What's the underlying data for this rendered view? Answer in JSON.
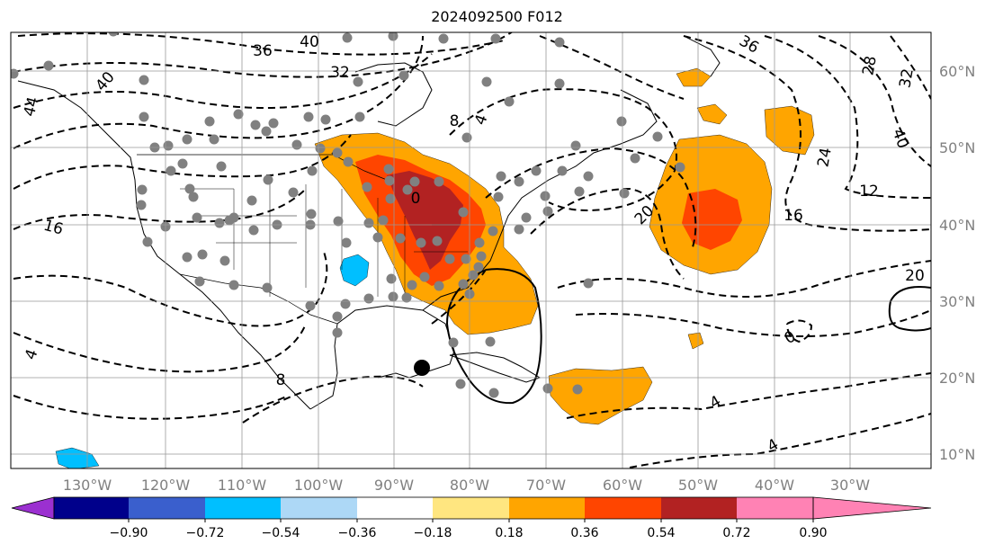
{
  "title": "2024092500 F012",
  "map": {
    "lon_range": [
      -138,
      -17
    ],
    "lat_range": [
      8,
      65
    ],
    "lon_ticks": [
      "130°W",
      "120°W",
      "110°W",
      "100°W",
      "90°W",
      "80°W",
      "70°W",
      "60°W",
      "50°W",
      "40°W",
      "30°W"
    ],
    "lat_ticks": [
      "10°N",
      "20°N",
      "30°N",
      "40°N",
      "50°N",
      "60°N"
    ],
    "contour_labels": [
      "36",
      "40",
      "32",
      "40",
      "44",
      "16",
      "20",
      "16",
      "12",
      "24",
      "28",
      "32",
      "40",
      "36",
      "20",
      "0",
      "4",
      "4",
      "8",
      "4",
      "8",
      "4",
      "0"
    ],
    "storm_marker": {
      "lon": -86.5,
      "lat": 21.3
    }
  },
  "colorbar": {
    "ticks": [
      "−0.90",
      "−0.72",
      "−0.54",
      "−0.36",
      "−0.18",
      "0.18",
      "0.36",
      "0.54",
      "0.72",
      "0.90"
    ],
    "colors": [
      "#9b30d0",
      "#00008b",
      "#3a5fcd",
      "#00bfff",
      "#add8f6",
      "#ffffff",
      "#ffe680",
      "#ffa500",
      "#ff4500",
      "#b22222",
      "#ff82b4"
    ]
  }
}
